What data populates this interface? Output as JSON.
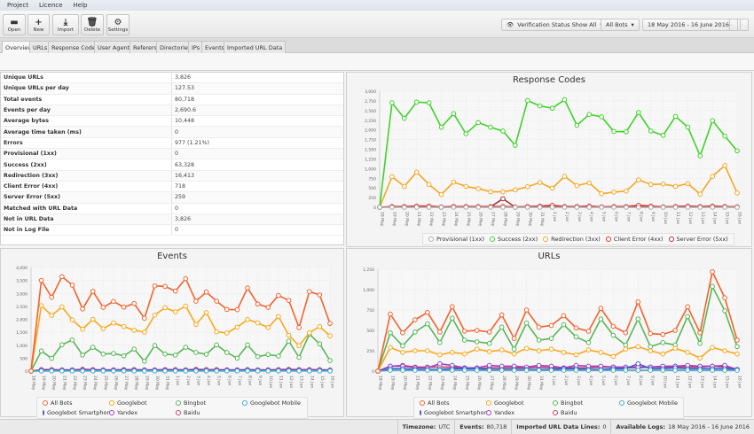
{
  "menu": [
    "Project",
    "Licence",
    "Help"
  ],
  "toolbar": {
    "open": "Open",
    "new": "New",
    "import": "Import",
    "delete": "Delete",
    "settings": "Settings",
    "verification": "Verification Status Show All",
    "bots": "All Bots",
    "date_range": "18 May 2016 - 16 June 2016"
  },
  "tabs": [
    "Overview",
    "URLs",
    "Response Codes",
    "User Agents",
    "Referers",
    "Directories",
    "IPs",
    "Events",
    "Imported URL Data"
  ],
  "stats": [
    {
      "k": "Unique URLs",
      "v": "3,826"
    },
    {
      "k": "Unique URLs per day",
      "v": "127.53"
    },
    {
      "k": "Total events",
      "v": "80,718"
    },
    {
      "k": "Events per day",
      "v": "2,690.6"
    },
    {
      "k": "Average bytes",
      "v": "10,448"
    },
    {
      "k": "Average time taken (ms)",
      "v": "0"
    },
    {
      "k": "Errors",
      "v": "977 (1.21%)"
    },
    {
      "k": "Provisional (1xx)",
      "v": "0"
    },
    {
      "k": "Success (2xx)",
      "v": "63,328"
    },
    {
      "k": "Redirection (3xx)",
      "v": "16,413"
    },
    {
      "k": "Client Error (4xx)",
      "v": "718"
    },
    {
      "k": "Server Error (5xx)",
      "v": "259"
    },
    {
      "k": "Matched with URL Data",
      "v": "0"
    },
    {
      "k": "Not in URL Data",
      "v": "3,826"
    },
    {
      "k": "Not in Log File",
      "v": "0"
    }
  ],
  "chart_data": [
    {
      "id": "response",
      "type": "line",
      "title": "Response Codes",
      "ylim": [
        0,
        3000
      ],
      "grid": true,
      "legend": "bottom",
      "yticks": [
        "0",
        "250",
        "500",
        "750",
        "1,000",
        "1,250",
        "1,500",
        "1,750",
        "2,000",
        "2,250",
        "2,500",
        "2,750",
        "3,000"
      ],
      "categories": [
        "18 May",
        "19 May",
        "20 May",
        "21 May",
        "22 May",
        "23 May",
        "24 May",
        "25 May",
        "26 May",
        "27 May",
        "28 May",
        "29 May",
        "30 May",
        "31 May",
        "1 Jun",
        "2 Jun",
        "3 Jun",
        "4 Jun",
        "5 Jun",
        "6 Jun",
        "7 Jun",
        "8 Jun",
        "9 Jun",
        "10 Jun",
        "11 Jun",
        "12 Jun",
        "13 Jun",
        "14 Jun",
        "15 Jun",
        "16 Jun"
      ],
      "series": [
        {
          "name": "Provisional (1xx)",
          "color": "#aaaaaa",
          "values": [
            0,
            0,
            0,
            0,
            0,
            0,
            0,
            0,
            0,
            0,
            0,
            0,
            0,
            0,
            0,
            0,
            0,
            0,
            0,
            0,
            0,
            0,
            0,
            0,
            0,
            0,
            0,
            0,
            0,
            0
          ]
        },
        {
          "name": "Success (2xx)",
          "color": "#3ed22a",
          "values": [
            0,
            2700,
            2300,
            2720,
            2700,
            2070,
            2420,
            1900,
            2190,
            2070,
            1970,
            1600,
            2760,
            2620,
            2560,
            2780,
            2120,
            2400,
            2340,
            1960,
            1950,
            2450,
            1970,
            1860,
            2350,
            2070,
            1330,
            2240,
            1840,
            1460
          ]
        },
        {
          "name": "Redirection (3xx)",
          "color": "#f5a623",
          "values": [
            0,
            790,
            540,
            910,
            590,
            330,
            650,
            540,
            480,
            400,
            400,
            450,
            530,
            640,
            490,
            800,
            560,
            630,
            350,
            390,
            420,
            710,
            590,
            600,
            540,
            610,
            340,
            800,
            1080,
            370
          ]
        },
        {
          "name": "Client Error (4xx)",
          "color": "#e0302a",
          "values": [
            0,
            20,
            20,
            30,
            30,
            10,
            20,
            20,
            20,
            20,
            20,
            10,
            20,
            30,
            50,
            20,
            20,
            30,
            10,
            20,
            20,
            50,
            30,
            10,
            20,
            30,
            20,
            30,
            20,
            10
          ]
        },
        {
          "name": "Server Error (5xx)",
          "color": "#a8323c",
          "values": [
            0,
            10,
            10,
            10,
            10,
            0,
            10,
            10,
            10,
            10,
            220,
            0,
            10,
            10,
            10,
            10,
            10,
            10,
            10,
            10,
            10,
            30,
            10,
            10,
            10,
            10,
            10,
            10,
            10,
            10
          ]
        }
      ]
    },
    {
      "id": "events",
      "type": "line",
      "title": "Events",
      "ylim": [
        0,
        4000
      ],
      "grid": true,
      "legend": "bottom",
      "yticks": [
        "0",
        "500",
        "1,000",
        "1,500",
        "2,000",
        "2,500",
        "3,000",
        "3,500",
        "4,000"
      ],
      "categories": [
        "18 May",
        "19 May",
        "20 May",
        "21 May",
        "22 May",
        "23 May",
        "24 May",
        "25 May",
        "26 May",
        "27 May",
        "28 May",
        "29 May",
        "30 May",
        "31 May",
        "1 Jun",
        "2 Jun",
        "3 Jun",
        "4 Jun",
        "5 Jun",
        "6 Jun",
        "7 Jun",
        "8 Jun",
        "9 Jun",
        "10 Jun",
        "11 Jun",
        "12 Jun",
        "13 Jun",
        "14 Jun",
        "15 Jun",
        "16 Jun"
      ],
      "series": [
        {
          "name": "All Bots",
          "color": "#f3622d",
          "values": [
            0,
            3500,
            2850,
            3650,
            3320,
            2400,
            3080,
            2460,
            2690,
            2470,
            2610,
            2040,
            3290,
            3270,
            3090,
            3570,
            2700,
            3050,
            2700,
            2380,
            2370,
            3210,
            2590,
            2460,
            2920,
            2730,
            1680,
            3070,
            2940,
            1840
          ]
        },
        {
          "name": "Googlebot",
          "color": "#fba71b",
          "values": [
            0,
            2530,
            2150,
            2480,
            1980,
            1620,
            2000,
            1640,
            1860,
            1720,
            1580,
            1500,
            2160,
            2450,
            2290,
            2510,
            1800,
            2260,
            1520,
            1470,
            1700,
            1990,
            1860,
            1680,
            2110,
            1380,
            980,
            1480,
            1720,
            1360
          ]
        },
        {
          "name": "Bingbot",
          "color": "#57b757",
          "values": [
            0,
            780,
            490,
            1020,
            1200,
            620,
            920,
            660,
            680,
            590,
            850,
            380,
            990,
            660,
            620,
            920,
            720,
            650,
            1010,
            720,
            500,
            1010,
            560,
            640,
            580,
            1160,
            530,
            1430,
            1050,
            410
          ]
        },
        {
          "name": "Googlebot Mobile",
          "color": "#41a9c9",
          "values": [
            0,
            5,
            5,
            5,
            5,
            5,
            5,
            5,
            5,
            5,
            5,
            5,
            5,
            5,
            5,
            5,
            5,
            5,
            5,
            5,
            5,
            5,
            5,
            5,
            5,
            5,
            5,
            5,
            5,
            5
          ]
        },
        {
          "name": "Googlebot Smartphone",
          "color": "#4258c9",
          "values": [
            0,
            20,
            20,
            20,
            20,
            20,
            20,
            20,
            20,
            20,
            20,
            20,
            20,
            20,
            20,
            20,
            20,
            20,
            20,
            20,
            20,
            40,
            20,
            20,
            20,
            20,
            20,
            20,
            20,
            20
          ]
        },
        {
          "name": "Yandex",
          "color": "#9a42c8",
          "values": [
            0,
            40,
            40,
            40,
            40,
            50,
            40,
            40,
            40,
            40,
            40,
            40,
            40,
            40,
            40,
            40,
            50,
            40,
            40,
            40,
            40,
            40,
            40,
            40,
            40,
            50,
            40,
            40,
            40,
            40
          ]
        },
        {
          "name": "Baidu",
          "color": "#c84164",
          "values": [
            0,
            60,
            60,
            50,
            50,
            70,
            60,
            50,
            50,
            60,
            60,
            50,
            50,
            60,
            60,
            50,
            70,
            60,
            60,
            50,
            50,
            60,
            50,
            50,
            60,
            70,
            60,
            60,
            60,
            40
          ]
        }
      ]
    },
    {
      "id": "urls",
      "type": "line",
      "title": "URLs",
      "ylim": [
        0,
        1250
      ],
      "grid": true,
      "legend": "bottom",
      "yticks": [
        "0",
        "250",
        "500",
        "750",
        "1,000",
        "1,250"
      ],
      "categories": [
        "18 May",
        "19 May",
        "20 May",
        "21 May",
        "22 May",
        "23 May",
        "24 May",
        "25 May",
        "26 May",
        "27 May",
        "28 May",
        "29 May",
        "30 May",
        "31 May",
        "1 Jun",
        "2 Jun",
        "3 Jun",
        "4 Jun",
        "5 Jun",
        "6 Jun",
        "7 Jun",
        "8 Jun",
        "9 Jun",
        "10 Jun",
        "11 Jun",
        "12 Jun",
        "13 Jun",
        "14 Jun",
        "15 Jun",
        "16 Jun"
      ],
      "series": [
        {
          "name": "All Bots",
          "color": "#f3622d",
          "values": [
            0,
            700,
            470,
            630,
            720,
            480,
            790,
            490,
            500,
            480,
            690,
            400,
            750,
            540,
            560,
            680,
            530,
            490,
            770,
            550,
            470,
            850,
            460,
            450,
            500,
            790,
            470,
            1220,
            900,
            380
          ]
        },
        {
          "name": "Googlebot",
          "color": "#fba71b",
          "values": [
            0,
            290,
            230,
            250,
            250,
            200,
            230,
            210,
            270,
            240,
            260,
            210,
            280,
            250,
            270,
            230,
            200,
            260,
            230,
            180,
            270,
            300,
            250,
            210,
            280,
            230,
            160,
            290,
            250,
            210
          ]
        },
        {
          "name": "Bingbot",
          "color": "#57b757",
          "values": [
            0,
            470,
            310,
            480,
            580,
            350,
            650,
            380,
            360,
            340,
            540,
            270,
            590,
            380,
            400,
            570,
            420,
            350,
            640,
            440,
            320,
            640,
            300,
            350,
            320,
            670,
            340,
            1040,
            740,
            300
          ]
        },
        {
          "name": "Googlebot Mobile",
          "color": "#41a9c9",
          "values": [
            0,
            10,
            10,
            10,
            10,
            10,
            10,
            10,
            10,
            10,
            10,
            10,
            10,
            10,
            10,
            10,
            10,
            10,
            10,
            10,
            10,
            10,
            10,
            10,
            10,
            10,
            10,
            10,
            10,
            10
          ]
        },
        {
          "name": "Googlebot Smartphone",
          "color": "#4258c9",
          "values": [
            0,
            30,
            30,
            20,
            20,
            20,
            30,
            30,
            30,
            20,
            20,
            20,
            20,
            20,
            20,
            30,
            30,
            20,
            20,
            30,
            30,
            90,
            30,
            30,
            40,
            30,
            30,
            30,
            30,
            20
          ]
        },
        {
          "name": "Yandex",
          "color": "#9a42c8",
          "values": [
            0,
            60,
            60,
            40,
            40,
            90,
            70,
            40,
            40,
            70,
            60,
            60,
            50,
            70,
            60,
            40,
            70,
            60,
            60,
            50,
            50,
            50,
            50,
            60,
            60,
            70,
            60,
            60,
            70,
            20
          ]
        },
        {
          "name": "Baidu",
          "color": "#c84164",
          "values": [
            0,
            60,
            70,
            50,
            50,
            50,
            50,
            40,
            30,
            40,
            40,
            40,
            40,
            50,
            40,
            40,
            40,
            40,
            50,
            50,
            40,
            40,
            50,
            50,
            50,
            50,
            50,
            60,
            50,
            20
          ]
        }
      ]
    }
  ],
  "status": {
    "timezone_label": "Timezone:",
    "timezone": "UTC",
    "events_label": "Events:",
    "events": "80,718",
    "imported_label": "Imported URL Data Lines:",
    "imported": "0",
    "logs_label": "Available Logs:",
    "logs": "18 May 2016 - 16 June 2016"
  }
}
